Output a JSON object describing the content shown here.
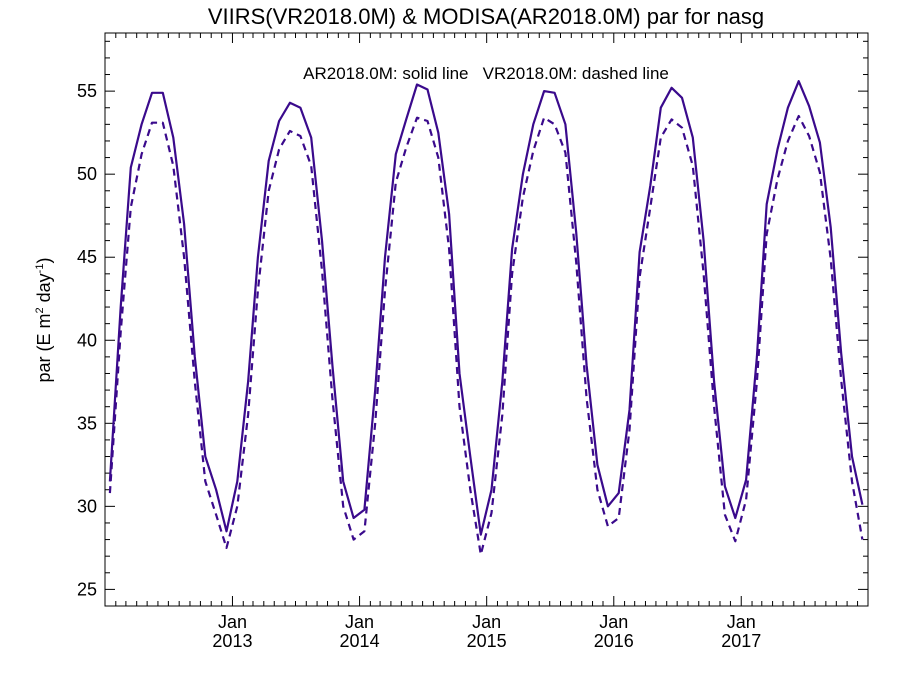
{
  "colors": {
    "series": "#3a0a8c",
    "axis": "#000000",
    "background": "#ffffff"
  },
  "chart_data": {
    "type": "line",
    "title": "VIIRS(VR2018.0M) & MODISA(AR2018.0M)  par for nasg",
    "ylabel_main": "par (E m",
    "ylabel_sup1": "2",
    "ylabel_mid": " day",
    "ylabel_sup2": "-1",
    "ylabel_end": ")",
    "annotation": "AR2018.0M: solid line   VR2018.0M: dashed line",
    "ylim": [
      24,
      58.5
    ],
    "xlim": [
      "2012-01-01",
      "2017-12-31"
    ],
    "yticks": [
      25,
      30,
      35,
      40,
      45,
      50,
      55
    ],
    "xticks": [
      {
        "date": "2013-01-01",
        "month": "Jan",
        "year": "2013"
      },
      {
        "date": "2014-01-01",
        "month": "Jan",
        "year": "2014"
      },
      {
        "date": "2015-01-01",
        "month": "Jan",
        "year": "2015"
      },
      {
        "date": "2016-01-01",
        "month": "Jan",
        "year": "2016"
      },
      {
        "date": "2017-01-01",
        "month": "Jan",
        "year": "2017"
      }
    ],
    "legend": "annotation top-center",
    "grid": false,
    "x": [
      "2012-01-15",
      "2012-02-15",
      "2012-03-15",
      "2012-04-15",
      "2012-05-15",
      "2012-06-15",
      "2012-07-15",
      "2012-08-15",
      "2012-09-15",
      "2012-10-15",
      "2012-11-15",
      "2012-12-15",
      "2013-01-15",
      "2013-02-15",
      "2013-03-15",
      "2013-04-15",
      "2013-05-15",
      "2013-06-15",
      "2013-07-15",
      "2013-08-15",
      "2013-09-15",
      "2013-10-15",
      "2013-11-15",
      "2013-12-15",
      "2014-01-15",
      "2014-02-15",
      "2014-03-15",
      "2014-04-15",
      "2014-05-15",
      "2014-06-15",
      "2014-07-15",
      "2014-08-15",
      "2014-09-15",
      "2014-10-15",
      "2014-11-15",
      "2014-12-15",
      "2015-01-15",
      "2015-02-15",
      "2015-03-15",
      "2015-04-15",
      "2015-05-15",
      "2015-06-15",
      "2015-07-15",
      "2015-08-15",
      "2015-09-15",
      "2015-10-15",
      "2015-11-15",
      "2015-12-15",
      "2016-01-15",
      "2016-02-15",
      "2016-03-15",
      "2016-04-15",
      "2016-05-15",
      "2016-06-15",
      "2016-07-15",
      "2016-08-15",
      "2016-09-15",
      "2016-10-15",
      "2016-11-15",
      "2016-12-15",
      "2017-01-15",
      "2017-02-15",
      "2017-03-15",
      "2017-04-15",
      "2017-05-15",
      "2017-06-15",
      "2017-07-15",
      "2017-08-15",
      "2017-09-15",
      "2017-10-15",
      "2017-11-15",
      "2017-12-15"
    ],
    "series": [
      {
        "name": "AR2018.0M",
        "style": "solid",
        "values": [
          31.5,
          42.0,
          50.4,
          53.0,
          54.9,
          54.9,
          52.2,
          47.0,
          39.0,
          33.0,
          31.0,
          28.5,
          31.5,
          37.5,
          45.0,
          50.8,
          53.2,
          54.3,
          54.0,
          52.2,
          46.0,
          38.5,
          31.5,
          29.3,
          29.8,
          37.0,
          45.0,
          51.2,
          53.3,
          55.4,
          55.1,
          52.5,
          47.6,
          38.0,
          33.0,
          28.3,
          31.0,
          37.5,
          45.5,
          50.0,
          53.0,
          55.0,
          54.9,
          53.0,
          46.5,
          38.5,
          32.5,
          30.0,
          30.8,
          35.8,
          45.3,
          49.3,
          54.0,
          55.2,
          54.6,
          52.2,
          46.0,
          37.5,
          31.2,
          29.3,
          31.6,
          39.0,
          48.2,
          51.5,
          54.0,
          55.6,
          54.1,
          51.9,
          46.8,
          39.2,
          33.0,
          30.1
        ]
      },
      {
        "name": "VR2018.0M",
        "style": "dashed",
        "values": [
          30.8,
          40.5,
          48.0,
          51.2,
          53.1,
          53.1,
          50.5,
          45.0,
          37.5,
          31.5,
          29.5,
          27.5,
          30.0,
          35.5,
          43.0,
          49.0,
          51.5,
          52.6,
          52.3,
          50.5,
          44.2,
          36.5,
          30.0,
          28.0,
          28.5,
          35.0,
          43.0,
          49.5,
          51.6,
          53.4,
          53.2,
          51.0,
          45.5,
          36.0,
          31.0,
          27.1,
          29.6,
          35.5,
          44.0,
          48.6,
          51.4,
          53.4,
          53.0,
          51.3,
          44.7,
          36.5,
          31.0,
          28.8,
          29.3,
          34.6,
          43.8,
          48.0,
          52.2,
          53.3,
          52.8,
          50.5,
          44.0,
          36.0,
          29.5,
          27.9,
          30.4,
          37.5,
          46.4,
          49.7,
          52.0,
          53.5,
          52.3,
          50.1,
          44.9,
          37.6,
          31.5,
          28.0
        ]
      }
    ]
  }
}
